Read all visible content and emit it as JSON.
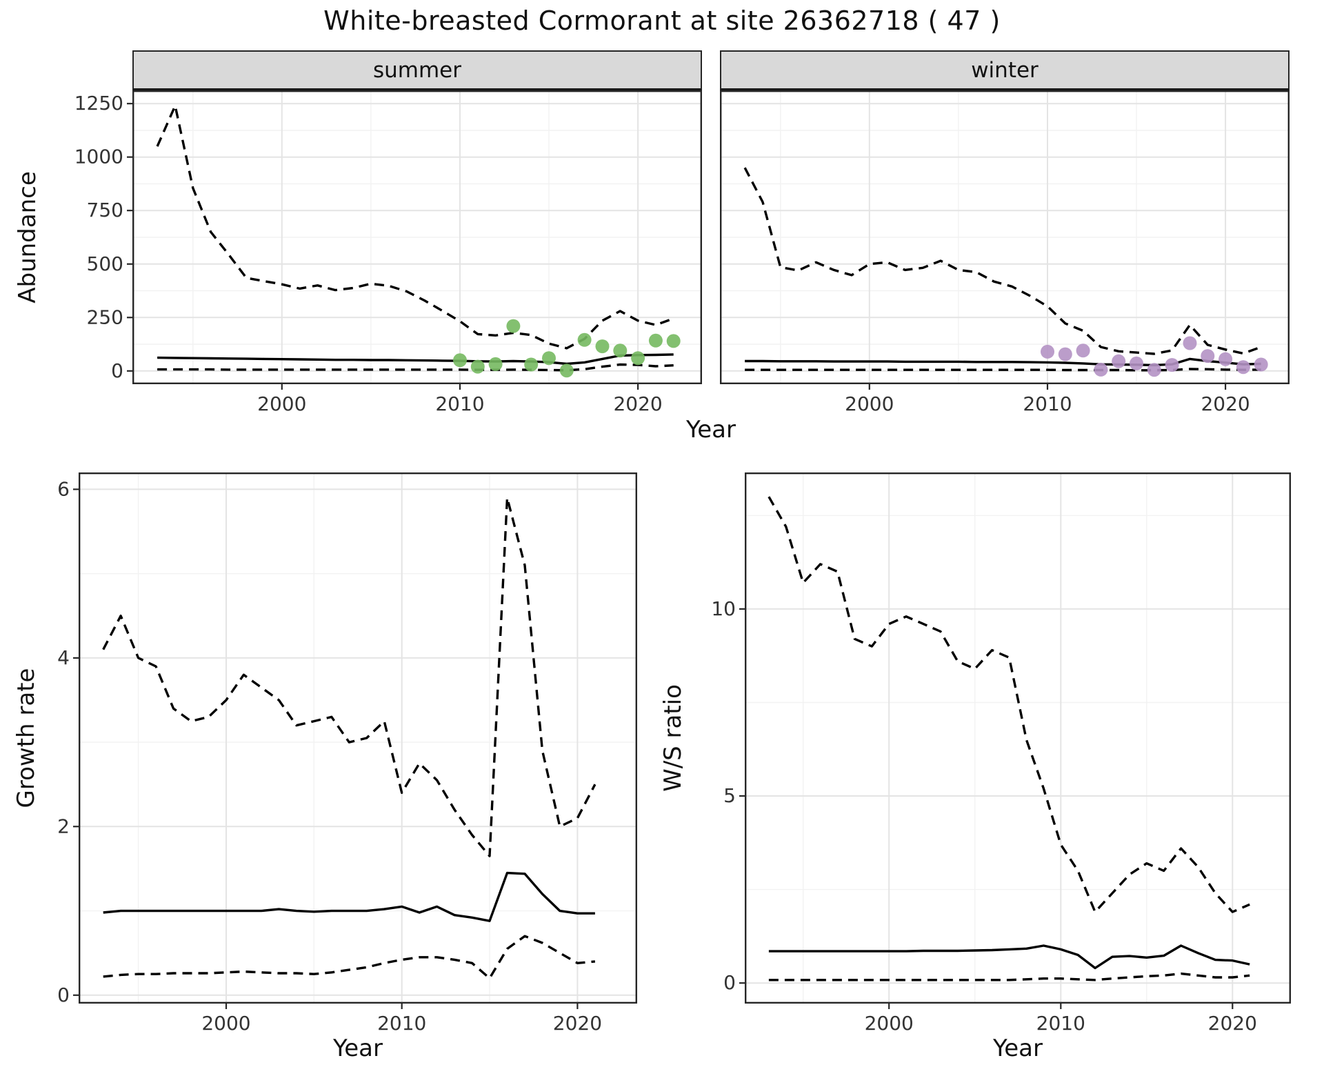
{
  "title": "White-breasted Cormorant at site 26362718 ( 47 )",
  "colors": {
    "line": "#000000",
    "strip_background": "#d9d9d9",
    "summer_points": "#76b960",
    "winter_points": "#b492c4",
    "grid_major": "#e4e4e4",
    "grid_minor": "#f2f2f2"
  },
  "chart_data": [
    {
      "id": "abundance-summer",
      "type": "line",
      "facet_label": "summer",
      "xlabel": "Year",
      "ylabel": "Abundance",
      "legend": "none",
      "grid": true,
      "xlim": [
        1991.6,
        2023.6
      ],
      "ylim": [
        -62,
        1312
      ],
      "xticks": [
        2000,
        2010,
        2020
      ],
      "xminor": [
        1995,
        2005,
        2015
      ],
      "yticks": [
        0,
        250,
        500,
        750,
        1000,
        1250
      ],
      "yminor": [
        125,
        375,
        625,
        875,
        1125
      ],
      "x": [
        1993,
        1994,
        1995,
        1996,
        1997,
        1998,
        1999,
        2000,
        2001,
        2002,
        2003,
        2004,
        2005,
        2006,
        2007,
        2008,
        2009,
        2010,
        2011,
        2012,
        2013,
        2014,
        2015,
        2016,
        2017,
        2018,
        2019,
        2020,
        2021,
        2022
      ],
      "series": [
        {
          "name": "upper-95ci",
          "style": "dashed",
          "color": "#000000",
          "values": [
            1050,
            1240,
            855,
            650,
            545,
            435,
            420,
            405,
            385,
            400,
            378,
            388,
            408,
            398,
            372,
            330,
            282,
            232,
            172,
            166,
            178,
            168,
            128,
            106,
            150,
            235,
            280,
            235,
            215,
            245
          ]
        },
        {
          "name": "model-fit",
          "style": "solid",
          "color": "#000000",
          "values": [
            62,
            61,
            60,
            59,
            58,
            57,
            56,
            55,
            54,
            53,
            52,
            52,
            51,
            51,
            50,
            49,
            48,
            47,
            45,
            44,
            46,
            44,
            41,
            33,
            40,
            56,
            72,
            74,
            75,
            77
          ]
        },
        {
          "name": "lower-95ci",
          "style": "dashed",
          "color": "#000000",
          "values": [
            7,
            7,
            7,
            7,
            6,
            6,
            6,
            6,
            6,
            6,
            6,
            6,
            6,
            6,
            6,
            6,
            6,
            6,
            5,
            5,
            6,
            5,
            4,
            3,
            8,
            20,
            30,
            28,
            22,
            26
          ]
        },
        {
          "name": "observed-counts",
          "style": "points",
          "color": "#76b960",
          "x": [
            2010,
            2011,
            2012,
            2013,
            2014,
            2015,
            2016,
            2017,
            2018,
            2019,
            2020,
            2021,
            2022
          ],
          "values": [
            50,
            20,
            32,
            210,
            30,
            60,
            2,
            145,
            115,
            95,
            60,
            142,
            140
          ]
        }
      ]
    },
    {
      "id": "abundance-winter",
      "type": "line",
      "facet_label": "winter",
      "xlabel": "Year",
      "ylabel": "Abundance",
      "legend": "none",
      "grid": true,
      "xlim": [
        1991.6,
        2023.6
      ],
      "ylim": [
        -62,
        1312
      ],
      "xticks": [
        2000,
        2010,
        2020
      ],
      "xminor": [
        1995,
        2005,
        2015
      ],
      "yticks": [
        0,
        250,
        500,
        750,
        1000,
        1250
      ],
      "yminor": [
        125,
        375,
        625,
        875,
        1125
      ],
      "x": [
        1993,
        1994,
        1995,
        1996,
        1997,
        1998,
        1999,
        2000,
        2001,
        2002,
        2003,
        2004,
        2005,
        2006,
        2007,
        2008,
        2009,
        2010,
        2011,
        2012,
        2013,
        2014,
        2015,
        2016,
        2017,
        2018,
        2019,
        2020,
        2021,
        2022
      ],
      "series": [
        {
          "name": "upper-95ci",
          "style": "dashed",
          "color": "#000000",
          "values": [
            950,
            790,
            485,
            470,
            508,
            472,
            448,
            500,
            508,
            472,
            482,
            515,
            472,
            462,
            418,
            395,
            352,
            302,
            222,
            188,
            112,
            92,
            86,
            80,
            96,
            215,
            122,
            100,
            82,
            112
          ]
        },
        {
          "name": "model-fit",
          "style": "solid",
          "color": "#000000",
          "values": [
            46,
            46,
            45,
            45,
            45,
            44,
            44,
            44,
            44,
            43,
            43,
            43,
            43,
            42,
            42,
            42,
            41,
            40,
            38,
            35,
            31,
            30,
            29,
            27,
            31,
            56,
            46,
            39,
            31,
            33
          ]
        },
        {
          "name": "lower-95ci",
          "style": "dashed",
          "color": "#000000",
          "values": [
            5,
            5,
            5,
            5,
            5,
            5,
            5,
            5,
            5,
            5,
            5,
            5,
            5,
            5,
            5,
            5,
            5,
            5,
            4,
            4,
            4,
            4,
            3,
            3,
            4,
            9,
            8,
            6,
            5,
            6
          ]
        },
        {
          "name": "observed-counts",
          "style": "points",
          "color": "#b492c4",
          "x": [
            2010,
            2011,
            2012,
            2013,
            2014,
            2015,
            2016,
            2017,
            2018,
            2019,
            2020,
            2021,
            2022
          ],
          "values": [
            90,
            78,
            95,
            6,
            45,
            35,
            5,
            28,
            130,
            70,
            55,
            18,
            30
          ]
        }
      ]
    },
    {
      "id": "growth-rate",
      "type": "line",
      "facet_label": "",
      "xlabel": "Year",
      "ylabel": "Growth rate",
      "legend": "none",
      "grid": true,
      "xlim": [
        1991.6,
        2023.4
      ],
      "ylim": [
        -0.1,
        6.2
      ],
      "xticks": [
        2000,
        2010,
        2020
      ],
      "xminor": [
        1995,
        2005,
        2015
      ],
      "yticks": [
        0,
        2,
        4,
        6
      ],
      "yminor": [
        1,
        3,
        5
      ],
      "x": [
        1993,
        1994,
        1995,
        1996,
        1997,
        1998,
        1999,
        2000,
        2001,
        2002,
        2003,
        2004,
        2005,
        2006,
        2007,
        2008,
        2009,
        2010,
        2011,
        2012,
        2013,
        2014,
        2015,
        2016,
        2017,
        2018,
        2019,
        2020,
        2021
      ],
      "series": [
        {
          "name": "upper-95ci",
          "style": "dashed",
          "color": "#000000",
          "values": [
            4.1,
            4.5,
            4.0,
            3.9,
            3.4,
            3.25,
            3.3,
            3.5,
            3.8,
            3.65,
            3.5,
            3.2,
            3.25,
            3.3,
            3.0,
            3.05,
            3.25,
            2.4,
            2.75,
            2.55,
            2.2,
            1.9,
            1.65,
            5.9,
            5.1,
            2.9,
            2.0,
            2.1,
            2.5
          ]
        },
        {
          "name": "model-fit",
          "style": "solid",
          "color": "#000000",
          "values": [
            0.98,
            1.0,
            1.0,
            1.0,
            1.0,
            1.0,
            1.0,
            1.0,
            1.0,
            1.0,
            1.02,
            1.0,
            0.99,
            1.0,
            1.0,
            1.0,
            1.02,
            1.05,
            0.98,
            1.05,
            0.95,
            0.92,
            0.88,
            1.45,
            1.44,
            1.2,
            1.0,
            0.97,
            0.97
          ]
        },
        {
          "name": "lower-95ci",
          "style": "dashed",
          "color": "#000000",
          "values": [
            0.22,
            0.24,
            0.25,
            0.25,
            0.26,
            0.26,
            0.26,
            0.27,
            0.28,
            0.27,
            0.26,
            0.26,
            0.25,
            0.27,
            0.3,
            0.33,
            0.38,
            0.42,
            0.45,
            0.45,
            0.42,
            0.38,
            0.2,
            0.55,
            0.7,
            0.62,
            0.5,
            0.38,
            0.4
          ]
        }
      ]
    },
    {
      "id": "ws-ratio",
      "type": "line",
      "facet_label": "",
      "xlabel": "Year",
      "ylabel": "W/S ratio",
      "legend": "none",
      "grid": true,
      "xlim": [
        1991.6,
        2023.4
      ],
      "ylim": [
        -0.55,
        13.65
      ],
      "xticks": [
        2000,
        2010,
        2020
      ],
      "xminor": [
        1995,
        2005,
        2015
      ],
      "yticks": [
        0,
        5,
        10
      ],
      "yminor": [
        2.5,
        7.5,
        12.5
      ],
      "x": [
        1993,
        1994,
        1995,
        1996,
        1997,
        1998,
        1999,
        2000,
        2001,
        2002,
        2003,
        2004,
        2005,
        2006,
        2007,
        2008,
        2009,
        2010,
        2011,
        2012,
        2013,
        2014,
        2015,
        2016,
        2017,
        2018,
        2019,
        2020,
        2021
      ],
      "series": [
        {
          "name": "upper-95ci",
          "style": "dashed",
          "color": "#000000",
          "values": [
            13.0,
            12.2,
            10.7,
            11.2,
            11.0,
            9.2,
            9.0,
            9.6,
            9.8,
            9.6,
            9.4,
            8.6,
            8.4,
            8.9,
            8.7,
            6.5,
            5.2,
            3.7,
            3.0,
            1.9,
            2.4,
            2.9,
            3.2,
            3.0,
            3.6,
            3.1,
            2.4,
            1.9,
            2.1
          ]
        },
        {
          "name": "model-fit",
          "style": "solid",
          "color": "#000000",
          "values": [
            0.85,
            0.85,
            0.85,
            0.85,
            0.85,
            0.85,
            0.85,
            0.85,
            0.85,
            0.86,
            0.86,
            0.86,
            0.87,
            0.88,
            0.9,
            0.92,
            1.0,
            0.9,
            0.75,
            0.4,
            0.7,
            0.72,
            0.68,
            0.73,
            1.0,
            0.8,
            0.62,
            0.6,
            0.5
          ]
        },
        {
          "name": "lower-95ci",
          "style": "dashed",
          "color": "#000000",
          "values": [
            0.08,
            0.08,
            0.08,
            0.08,
            0.08,
            0.08,
            0.08,
            0.08,
            0.08,
            0.08,
            0.08,
            0.08,
            0.08,
            0.08,
            0.08,
            0.1,
            0.12,
            0.12,
            0.1,
            0.08,
            0.12,
            0.15,
            0.18,
            0.2,
            0.25,
            0.2,
            0.15,
            0.15,
            0.2
          ]
        }
      ]
    }
  ]
}
